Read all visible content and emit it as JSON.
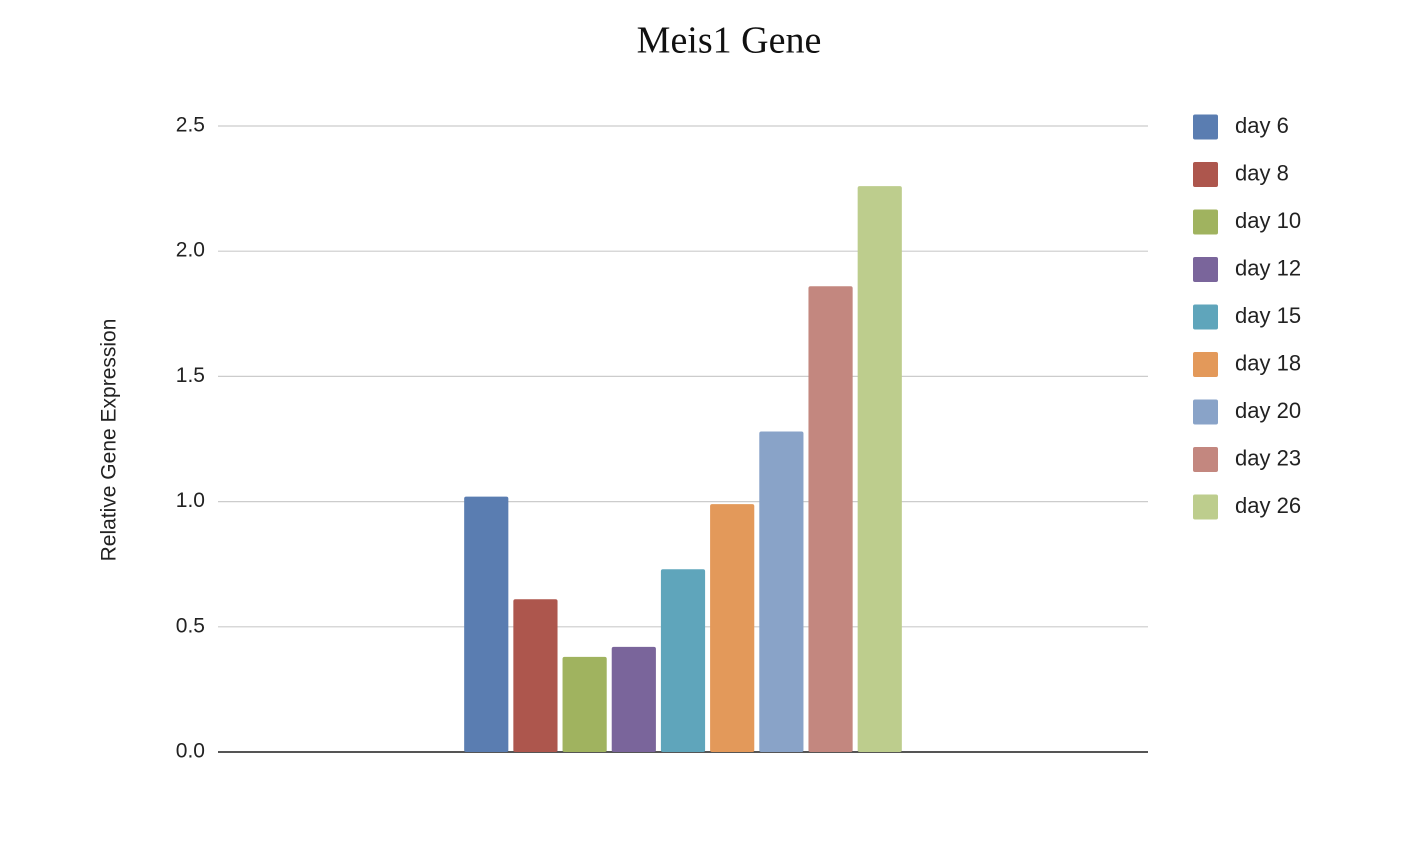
{
  "chart_data": {
    "type": "bar",
    "title": "Meis1 Gene",
    "y_label": "Relative Gene Expression",
    "categories": [
      null
    ],
    "series": [
      {
        "name": "day 6",
        "color": "#5a7db1",
        "values": [
          1.02
        ]
      },
      {
        "name": "day 8",
        "color": "#ad564d",
        "values": [
          0.61
        ]
      },
      {
        "name": "day 10",
        "color": "#a0b35f",
        "values": [
          0.38
        ]
      },
      {
        "name": "day 12",
        "color": "#7a659b",
        "values": [
          0.42
        ]
      },
      {
        "name": "day 15",
        "color": "#5fa5bb",
        "values": [
          0.73
        ]
      },
      {
        "name": "day 18",
        "color": "#e3995a",
        "values": [
          0.99
        ]
      },
      {
        "name": "day 20",
        "color": "#89a3c8",
        "values": [
          1.28
        ]
      },
      {
        "name": "day 23",
        "color": "#c3877f",
        "values": [
          1.86
        ]
      },
      {
        "name": "day 26",
        "color": "#bdcd8d",
        "values": [
          2.26
        ]
      }
    ],
    "ylim": [
      0,
      2.5
    ],
    "yticks": [
      {
        "value": 0,
        "label": "0.0"
      },
      0.5,
      {
        "value": 1,
        "label": "1.0"
      },
      1.5,
      {
        "value": 2,
        "label": "2.0"
      },
      2.5
    ],
    "grid": true,
    "legend": "right"
  }
}
